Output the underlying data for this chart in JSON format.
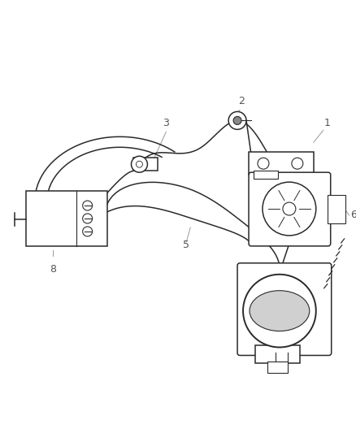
{
  "bg_color": "#ffffff",
  "line_color": "#2a2a2a",
  "label_color": "#555555",
  "leader_color": "#999999",
  "figsize": [
    4.39,
    5.33
  ],
  "dpi": 100,
  "lw": 1.1
}
